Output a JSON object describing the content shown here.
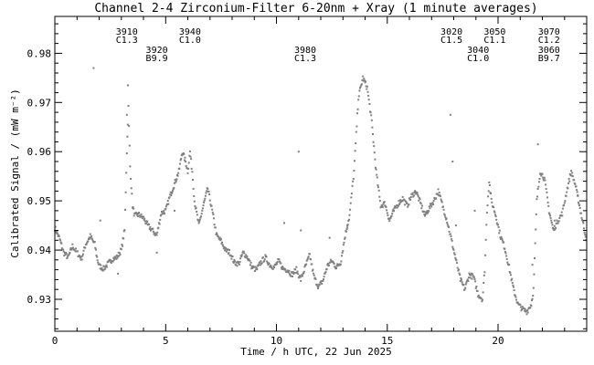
{
  "chart_data": {
    "type": "scatter",
    "title": "Channel 2-4   Zirconium-Filter   6-20nm + Xray   (1 minute averages)",
    "xlabel": "Time / h UTC, 22 Jun 2025",
    "ylabel": "Calibrated Signal / (mW m⁻²)",
    "xlim": [
      0,
      24
    ],
    "ylim": [
      0.9235,
      0.9875
    ],
    "xticks": [
      0,
      5,
      10,
      15,
      20
    ],
    "xtick_labels": [
      "0",
      "5",
      "10",
      "15",
      "20"
    ],
    "yticks": [
      0.93,
      0.94,
      0.95,
      0.96,
      0.97,
      0.98
    ],
    "ytick_labels": [
      "0.93",
      "0.94",
      "0.95",
      "0.96",
      "0.97",
      "0.98"
    ],
    "grid": false,
    "marker_color": "#808080",
    "series": [
      {
        "points": [
          [
            0.0,
            0.9445
          ],
          [
            0.2,
            0.9425
          ],
          [
            0.4,
            0.9395
          ],
          [
            0.6,
            0.9385
          ],
          [
            0.8,
            0.9408
          ],
          [
            1.0,
            0.9395
          ],
          [
            1.2,
            0.9382
          ],
          [
            1.4,
            0.9412
          ],
          [
            1.6,
            0.9428
          ],
          [
            1.8,
            0.9412
          ],
          [
            1.9,
            0.9385
          ],
          [
            2.0,
            0.9368
          ],
          [
            2.2,
            0.9362
          ],
          [
            2.4,
            0.9372
          ],
          [
            2.6,
            0.9382
          ],
          [
            2.8,
            0.9385
          ],
          [
            3.0,
            0.94
          ],
          [
            3.15,
            0.944
          ],
          [
            3.25,
            0.96
          ],
          [
            3.32,
            0.969
          ],
          [
            3.4,
            0.957
          ],
          [
            3.5,
            0.949
          ],
          [
            3.6,
            0.947
          ],
          [
            3.8,
            0.9472
          ],
          [
            4.0,
            0.9465
          ],
          [
            4.2,
            0.945
          ],
          [
            4.4,
            0.944
          ],
          [
            4.6,
            0.943
          ],
          [
            4.8,
            0.9475
          ],
          [
            5.0,
            0.948
          ],
          [
            5.2,
            0.951
          ],
          [
            5.4,
            0.9535
          ],
          [
            5.6,
            0.956
          ],
          [
            5.75,
            0.96
          ],
          [
            5.9,
            0.958
          ],
          [
            6.0,
            0.956
          ],
          [
            6.1,
            0.96
          ],
          [
            6.2,
            0.956
          ],
          [
            6.3,
            0.95
          ],
          [
            6.5,
            0.945
          ],
          [
            6.7,
            0.949
          ],
          [
            6.9,
            0.9525
          ],
          [
            7.1,
            0.948
          ],
          [
            7.3,
            0.943
          ],
          [
            7.5,
            0.9418
          ],
          [
            7.7,
            0.94
          ],
          [
            7.9,
            0.9395
          ],
          [
            8.1,
            0.9375
          ],
          [
            8.3,
            0.9372
          ],
          [
            8.5,
            0.9395
          ],
          [
            8.7,
            0.9385
          ],
          [
            8.9,
            0.9365
          ],
          [
            9.1,
            0.936
          ],
          [
            9.3,
            0.9375
          ],
          [
            9.5,
            0.9385
          ],
          [
            9.7,
            0.937
          ],
          [
            9.9,
            0.9365
          ],
          [
            10.1,
            0.9378
          ],
          [
            10.3,
            0.9362
          ],
          [
            10.5,
            0.936
          ],
          [
            10.7,
            0.935
          ],
          [
            10.9,
            0.936
          ],
          [
            11.1,
            0.934
          ],
          [
            11.3,
            0.9365
          ],
          [
            11.5,
            0.939
          ],
          [
            11.7,
            0.9345
          ],
          [
            11.9,
            0.9325
          ],
          [
            12.1,
            0.9338
          ],
          [
            12.3,
            0.9368
          ],
          [
            12.5,
            0.9378
          ],
          [
            12.7,
            0.9365
          ],
          [
            12.9,
            0.9375
          ],
          [
            13.1,
            0.943
          ],
          [
            13.3,
            0.947
          ],
          [
            13.5,
            0.956
          ],
          [
            13.7,
            0.971
          ],
          [
            13.9,
            0.975
          ],
          [
            14.1,
            0.973
          ],
          [
            14.3,
            0.966
          ],
          [
            14.5,
            0.956
          ],
          [
            14.7,
            0.949
          ],
          [
            14.9,
            0.9495
          ],
          [
            15.1,
            0.946
          ],
          [
            15.3,
            0.948
          ],
          [
            15.5,
            0.9495
          ],
          [
            15.7,
            0.9505
          ],
          [
            15.9,
            0.949
          ],
          [
            16.1,
            0.951
          ],
          [
            16.3,
            0.952
          ],
          [
            16.5,
            0.9495
          ],
          [
            16.7,
            0.947
          ],
          [
            16.9,
            0.9485
          ],
          [
            17.1,
            0.95
          ],
          [
            17.3,
            0.952
          ],
          [
            17.5,
            0.949
          ],
          [
            17.7,
            0.946
          ],
          [
            17.9,
            0.942
          ],
          [
            18.1,
            0.938
          ],
          [
            18.3,
            0.934
          ],
          [
            18.5,
            0.932
          ],
          [
            18.7,
            0.935
          ],
          [
            18.9,
            0.9345
          ],
          [
            19.1,
            0.931
          ],
          [
            19.3,
            0.93
          ],
          [
            19.4,
            0.936
          ],
          [
            19.5,
            0.948
          ],
          [
            19.6,
            0.954
          ],
          [
            19.7,
            0.95
          ],
          [
            19.9,
            0.947
          ],
          [
            20.1,
            0.943
          ],
          [
            20.3,
            0.9405
          ],
          [
            20.5,
            0.9365
          ],
          [
            20.7,
            0.932
          ],
          [
            20.9,
            0.929
          ],
          [
            21.1,
            0.928
          ],
          [
            21.3,
            0.9275
          ],
          [
            21.5,
            0.929
          ],
          [
            21.6,
            0.932
          ],
          [
            21.75,
            0.95
          ],
          [
            21.9,
            0.956
          ],
          [
            22.1,
            0.9545
          ],
          [
            22.3,
            0.948
          ],
          [
            22.5,
            0.944
          ],
          [
            22.7,
            0.946
          ],
          [
            22.9,
            0.9475
          ],
          [
            23.1,
            0.952
          ],
          [
            23.3,
            0.956
          ],
          [
            23.5,
            0.953
          ],
          [
            23.7,
            0.9485
          ],
          [
            23.9,
            0.944
          ],
          [
            24.0,
            0.942
          ]
        ]
      }
    ],
    "outliers": [
      [
        1.75,
        0.977
      ],
      [
        3.3,
        0.9735
      ],
      [
        3.25,
        0.9675
      ],
      [
        2.05,
        0.946
      ],
      [
        2.85,
        0.9352
      ],
      [
        4.6,
        0.9395
      ],
      [
        5.4,
        0.948
      ],
      [
        10.35,
        0.9455
      ],
      [
        11.0,
        0.96
      ],
      [
        11.1,
        0.944
      ],
      [
        12.4,
        0.9425
      ],
      [
        13.2,
        0.945
      ],
      [
        17.85,
        0.9675
      ],
      [
        17.95,
        0.958
      ],
      [
        18.1,
        0.945
      ],
      [
        18.95,
        0.948
      ],
      [
        21.55,
        0.937
      ],
      [
        21.8,
        0.9615
      ],
      [
        22.55,
        0.946
      ],
      [
        23.6,
        0.951
      ]
    ],
    "annotations": [
      {
        "x": 3.25,
        "lines": [
          "3910",
          "C1.3"
        ],
        "level": 1
      },
      {
        "x": 4.6,
        "lines": [
          "3920",
          "B9.9"
        ],
        "level": 2
      },
      {
        "x": 6.1,
        "lines": [
          "3940",
          "C1.0"
        ],
        "level": 1
      },
      {
        "x": 11.3,
        "lines": [
          "3980",
          "C1.3"
        ],
        "level": 2
      },
      {
        "x": 17.9,
        "lines": [
          "3020",
          "C1.5"
        ],
        "level": 1
      },
      {
        "x": 19.1,
        "lines": [
          "3040",
          "C1.0"
        ],
        "level": 2
      },
      {
        "x": 19.85,
        "lines": [
          "3050",
          "C1.1"
        ],
        "level": 1
      },
      {
        "x": 22.3,
        "lines": [
          "3060",
          "B9.7"
        ],
        "level": 2
      },
      {
        "x": 22.3,
        "lines": [
          "3070",
          "C1.2"
        ],
        "level": 1
      }
    ]
  }
}
